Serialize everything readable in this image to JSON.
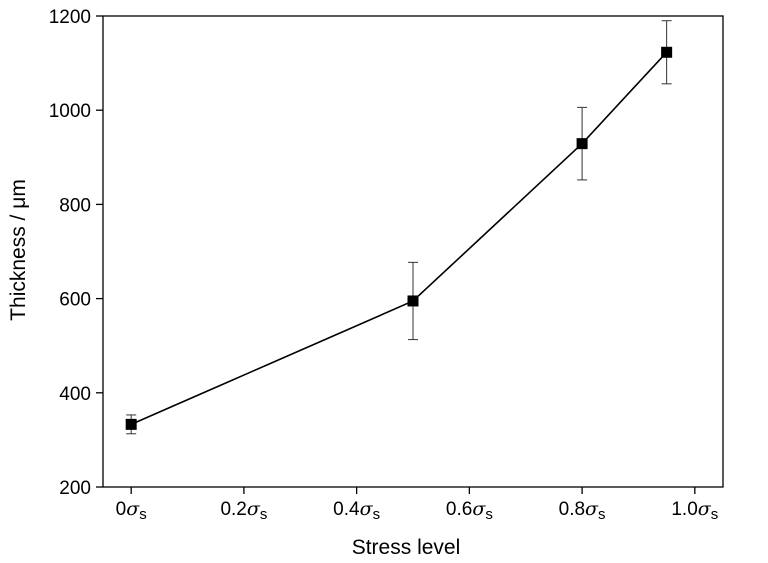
{
  "chart_data": {
    "type": "line",
    "xlabel": "Stress level",
    "ylabel": "Thickness / μm",
    "xlim": [
      -0.05,
      1.05
    ],
    "ylim": [
      200,
      1200
    ],
    "x_ticks": [
      {
        "value": 0.0,
        "num": "0",
        "sym": "σ",
        "sub": "s"
      },
      {
        "value": 0.2,
        "num": "0.2",
        "sym": "σ",
        "sub": "s"
      },
      {
        "value": 0.4,
        "num": "0.4",
        "sym": "σ",
        "sub": "s"
      },
      {
        "value": 0.6,
        "num": "0.6",
        "sym": "σ",
        "sub": "s"
      },
      {
        "value": 0.8,
        "num": "0.8",
        "sym": "σ",
        "sub": "s"
      },
      {
        "value": 1.0,
        "num": "1.0",
        "sym": "σ",
        "sub": "s"
      }
    ],
    "y_ticks": [
      {
        "value": 200,
        "label": "200"
      },
      {
        "value": 400,
        "label": "400"
      },
      {
        "value": 600,
        "label": "600"
      },
      {
        "value": 800,
        "label": "800"
      },
      {
        "value": 1000,
        "label": "1000"
      },
      {
        "value": 1200,
        "label": "1200"
      }
    ],
    "series": [
      {
        "x": [
          0.0,
          0.5,
          0.8,
          0.95
        ],
        "y": [
          333,
          595,
          929,
          1123
        ],
        "y_err": [
          20,
          82,
          77,
          67
        ],
        "marker": "square",
        "color": "#000000"
      }
    ],
    "grid": false,
    "legend": "none"
  }
}
